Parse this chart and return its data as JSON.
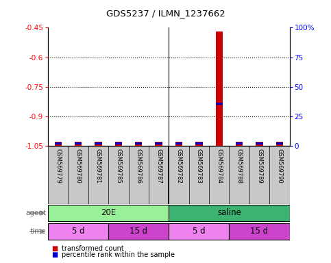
{
  "title": "GDS5237 / ILMN_1237662",
  "samples": [
    "GSM569779",
    "GSM569780",
    "GSM569781",
    "GSM569785",
    "GSM569786",
    "GSM569787",
    "GSM569782",
    "GSM569783",
    "GSM569784",
    "GSM569788",
    "GSM569789",
    "GSM569790"
  ],
  "red_values": [
    -1.03,
    -1.03,
    -1.03,
    -1.03,
    -1.03,
    -1.03,
    -1.03,
    -1.03,
    -0.47,
    -1.03,
    -1.03,
    -1.03
  ],
  "blue_values": [
    -1.038,
    -1.038,
    -1.038,
    -1.038,
    -1.038,
    -1.038,
    -1.038,
    -1.038,
    -0.835,
    -1.038,
    -1.038,
    -1.038
  ],
  "ylim_left": [
    -1.05,
    -0.45
  ],
  "ylim_right": [
    0,
    100
  ],
  "yticks_left": [
    -1.05,
    -0.9,
    -0.75,
    -0.6,
    -0.45
  ],
  "yticks_right": [
    0,
    25,
    50,
    75,
    100
  ],
  "ytick_labels_left": [
    "-1.05",
    "-0.9",
    "-0.75",
    "-0.6",
    "-0.45"
  ],
  "ytick_labels_right": [
    "0",
    "25",
    "50",
    "75",
    "100%"
  ],
  "hlines": [
    -0.6,
    -0.75,
    -0.9
  ],
  "agent_groups": [
    {
      "label": "20E",
      "start": 0,
      "end": 6,
      "color": "#98F098"
    },
    {
      "label": "saline",
      "start": 6,
      "end": 12,
      "color": "#3CB371"
    }
  ],
  "time_groups": [
    {
      "label": "5 d",
      "start": 0,
      "end": 3,
      "color": "#EE82EE"
    },
    {
      "label": "15 d",
      "start": 3,
      "end": 6,
      "color": "#CC44CC"
    },
    {
      "label": "5 d",
      "start": 6,
      "end": 9,
      "color": "#EE82EE"
    },
    {
      "label": "15 d",
      "start": 9,
      "end": 12,
      "color": "#CC44CC"
    }
  ],
  "red_color": "#CC0000",
  "blue_color": "#0000CC",
  "baseline": -1.05,
  "legend_red": "transformed count",
  "legend_blue": "percentile rank within the sample",
  "blue_bar_height": 0.01,
  "red_bar_width": 0.35,
  "group_divider": 5.5,
  "n_samples": 12
}
